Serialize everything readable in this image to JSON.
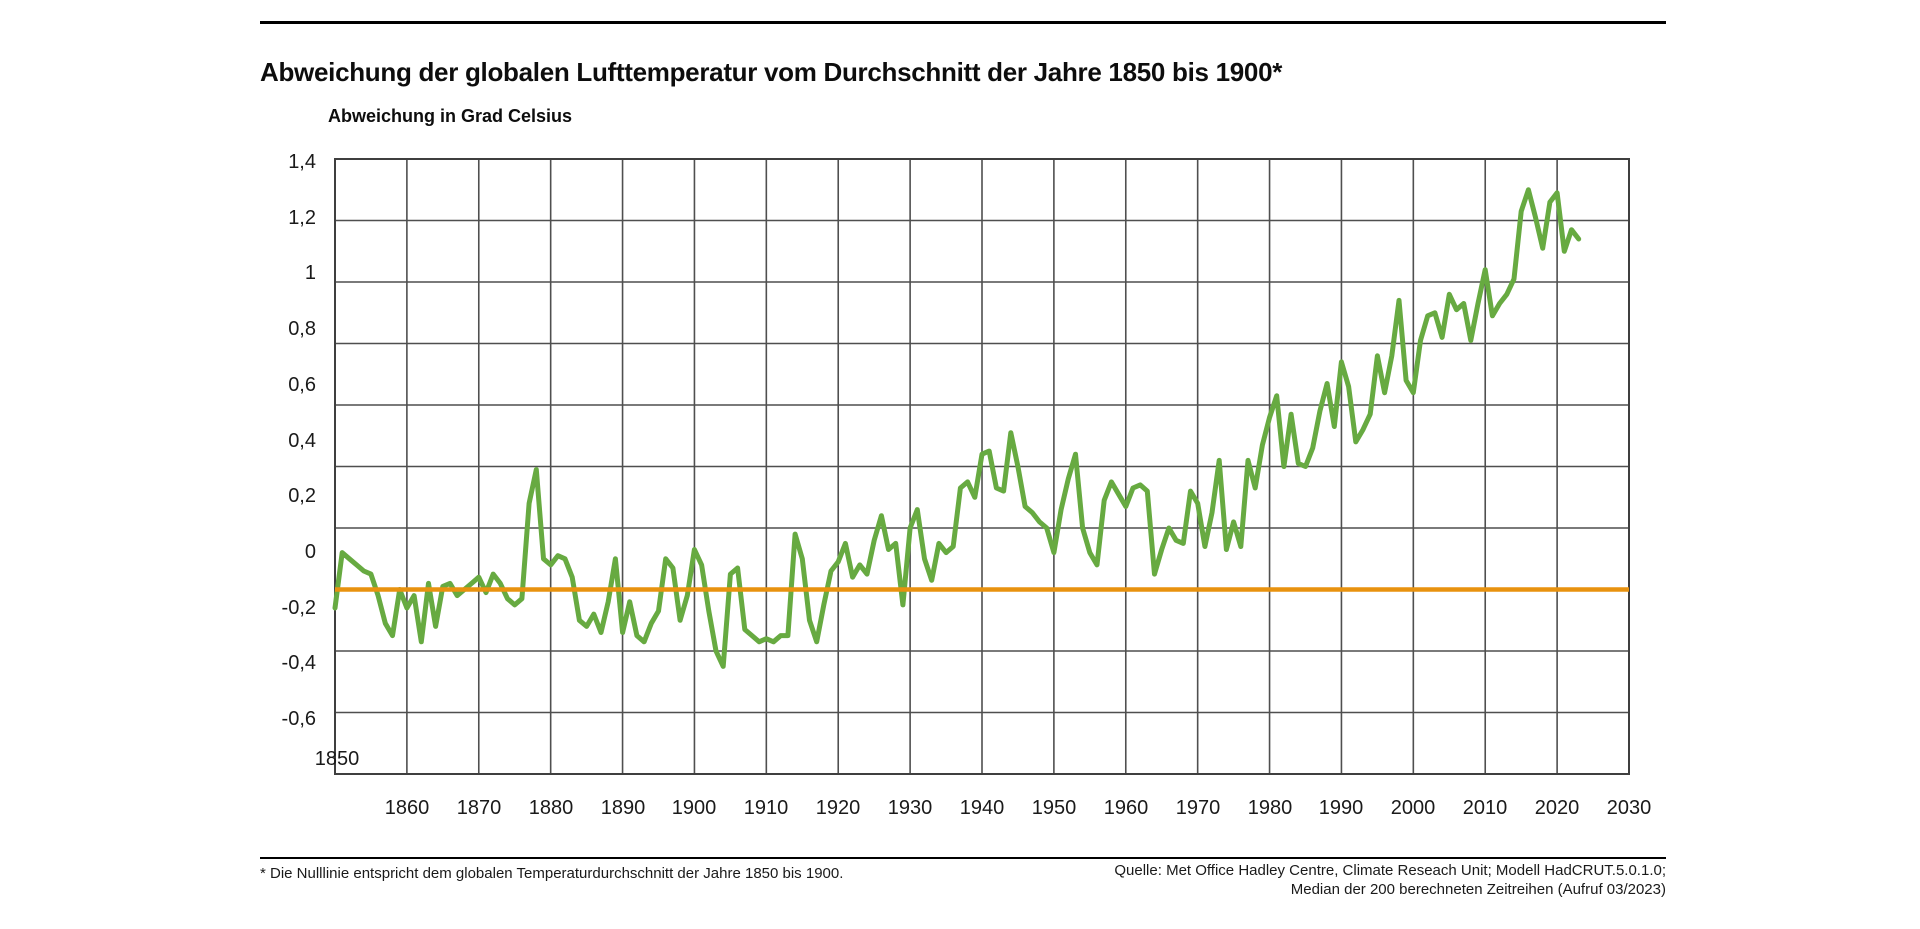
{
  "header": {
    "title": "Abweichung der globalen Lufttemperatur vom Durchschnitt der Jahre 1850 bis 1900*"
  },
  "chart": {
    "axis_title": "Abweichung in Grad Celsius",
    "origin_label": "1850",
    "y_tick_labels": [
      "1,4",
      "1,2",
      "1",
      "0,8",
      "0,6",
      "0,4",
      "0,2",
      "0",
      "-0,2",
      "-0,4",
      "-0,6"
    ],
    "x_tick_labels": [
      "1860",
      "1870",
      "1880",
      "1890",
      "1900",
      "1910",
      "1920",
      "1930",
      "1940",
      "1950",
      "1960",
      "1970",
      "1980",
      "1990",
      "2000",
      "2010",
      "2020",
      "2030"
    ],
    "colors": {
      "series": "#67aa41",
      "baseline": "#e8920f",
      "grid": "#4f4f4f",
      "border": "#3f3f3f",
      "text": "#1a1a1a"
    }
  },
  "chart_data": {
    "type": "line",
    "title": "Abweichung der globalen Lufttemperatur vom Durchschnitt der Jahre 1850 bis 1900*",
    "xlabel": "",
    "ylabel": "Abweichung in Grad Celsius",
    "x_range": [
      1850,
      2030
    ],
    "ylim": [
      -0.6,
      1.4
    ],
    "y_tick_step": 0.2,
    "x_tick_step": 10,
    "grid": true,
    "legend_position": "none",
    "baseline": {
      "value": 0,
      "label": "Nulllinie = globaler Temperaturdurchschnitt der Jahre 1850 bis 1900"
    },
    "series": [
      {
        "name": "Abweichung der globalen Lufttemperatur (HadCRUT.5.0.1.0, Median)",
        "x_start": 1850,
        "x_step": 1,
        "values": [
          -0.06,
          0.12,
          0.1,
          0.08,
          0.06,
          0.05,
          -0.02,
          -0.11,
          -0.15,
          0.0,
          -0.06,
          -0.02,
          -0.17,
          0.02,
          -0.12,
          0.01,
          0.02,
          -0.02,
          0.0,
          0.02,
          0.04,
          -0.01,
          0.05,
          0.02,
          -0.03,
          -0.05,
          -0.03,
          0.28,
          0.39,
          0.1,
          0.08,
          0.11,
          0.1,
          0.04,
          -0.1,
          -0.12,
          -0.08,
          -0.14,
          -0.04,
          0.1,
          -0.14,
          -0.04,
          -0.15,
          -0.17,
          -0.11,
          -0.07,
          0.1,
          0.07,
          -0.1,
          -0.02,
          0.13,
          0.08,
          -0.07,
          -0.2,
          -0.25,
          0.05,
          0.07,
          -0.13,
          -0.15,
          -0.17,
          -0.16,
          -0.17,
          -0.15,
          -0.15,
          0.18,
          0.1,
          -0.1,
          -0.17,
          -0.05,
          0.06,
          0.09,
          0.15,
          0.04,
          0.08,
          0.05,
          0.16,
          0.24,
          0.13,
          0.15,
          -0.05,
          0.2,
          0.26,
          0.1,
          0.03,
          0.15,
          0.12,
          0.14,
          0.33,
          0.35,
          0.3,
          0.44,
          0.45,
          0.33,
          0.32,
          0.51,
          0.4,
          0.27,
          0.25,
          0.22,
          0.2,
          0.12,
          0.26,
          0.36,
          0.44,
          0.2,
          0.12,
          0.08,
          0.29,
          0.35,
          0.31,
          0.27,
          0.33,
          0.34,
          0.32,
          0.05,
          0.13,
          0.2,
          0.16,
          0.15,
          0.32,
          0.28,
          0.14,
          0.25,
          0.42,
          0.13,
          0.22,
          0.14,
          0.42,
          0.33,
          0.47,
          0.56,
          0.63,
          0.4,
          0.57,
          0.41,
          0.4,
          0.46,
          0.58,
          0.67,
          0.53,
          0.74,
          0.66,
          0.48,
          0.52,
          0.57,
          0.76,
          0.64,
          0.76,
          0.94,
          0.68,
          0.64,
          0.81,
          0.89,
          0.9,
          0.82,
          0.96,
          0.91,
          0.93,
          0.81,
          0.93,
          1.04,
          0.89,
          0.93,
          0.96,
          1.01,
          1.23,
          1.3,
          1.21,
          1.11,
          1.26,
          1.29,
          1.1,
          1.17,
          1.14
        ]
      }
    ]
  },
  "footer": {
    "footnote": "* Die Nulllinie entspricht dem globalen Temperaturdurchschnitt der Jahre 1850 bis 1900.",
    "source_line1": "Quelle: Met Office Hadley Centre, Climate Reseach Unit; Modell HadCRUT.5.0.1.0;",
    "source_line2": "Median der 200 berechneten Zeitreihen (Aufruf 03/2023)"
  }
}
